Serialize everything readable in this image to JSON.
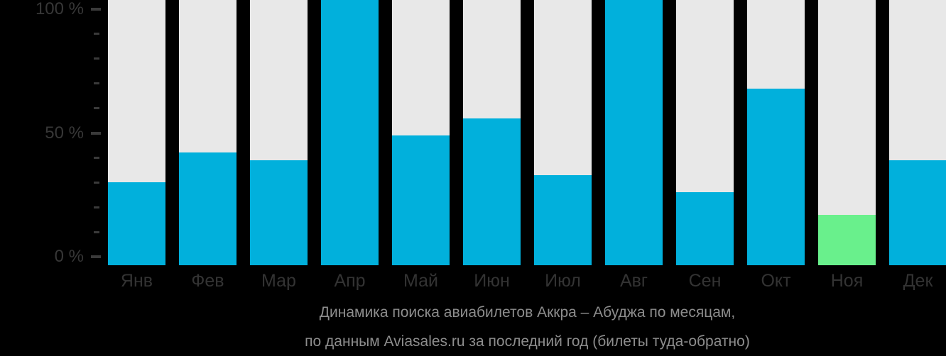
{
  "chart_data": {
    "type": "bar",
    "title": "Динамика поиска авиабилетов Аккра – Абуджа по месяцам,",
    "subtitle": "по данным Aviasales.ru за последний год (билеты туда-обратно)",
    "categories": [
      "Янв",
      "Фев",
      "Мар",
      "Апр",
      "Май",
      "Июн",
      "Июл",
      "Авг",
      "Сен",
      "Окт",
      "Ноя",
      "Дек"
    ],
    "values": [
      30,
      42,
      39,
      100,
      49,
      56,
      33,
      100,
      26,
      68,
      17,
      39
    ],
    "bars": [
      {
        "label": "Янв",
        "value": 30,
        "highlight": false
      },
      {
        "label": "Фев",
        "value": 42,
        "highlight": false
      },
      {
        "label": "Мар",
        "value": 39,
        "highlight": false
      },
      {
        "label": "Апр",
        "value": 100,
        "highlight": false
      },
      {
        "label": "Май",
        "value": 49,
        "highlight": false
      },
      {
        "label": "Июн",
        "value": 56,
        "highlight": false
      },
      {
        "label": "Июл",
        "value": 33,
        "highlight": false
      },
      {
        "label": "Авг",
        "value": 100,
        "highlight": false
      },
      {
        "label": "Сен",
        "value": 26,
        "highlight": false
      },
      {
        "label": "Окт",
        "value": 68,
        "highlight": false
      },
      {
        "label": "Ноя",
        "value": 17,
        "highlight": true
      },
      {
        "label": "Дек",
        "value": 39,
        "highlight": false
      }
    ],
    "y_axis": {
      "unit": "%",
      "range": [
        0,
        100
      ],
      "minor_step": 10,
      "major_ticks": [
        {
          "pct": 100,
          "label": "100 %"
        },
        {
          "pct": 50,
          "label": "50 %"
        },
        {
          "pct": 0,
          "label": "0 %"
        }
      ]
    },
    "legend": null,
    "grid": false,
    "colors": {
      "bar": "#01b0dc",
      "highlight_bar": "#69f08c",
      "track": "#e8e8e8",
      "background": "#000000",
      "axis_text": "#373737",
      "tick": "#3a3a3a",
      "caption_text": "#8d8d8d"
    }
  },
  "caption": {
    "line1": "Динамика поиска авиабилетов Аккра – Абуджа по месяцам,",
    "line2": "по данным Aviasales.ru за последний год (билеты туда-обратно)"
  }
}
